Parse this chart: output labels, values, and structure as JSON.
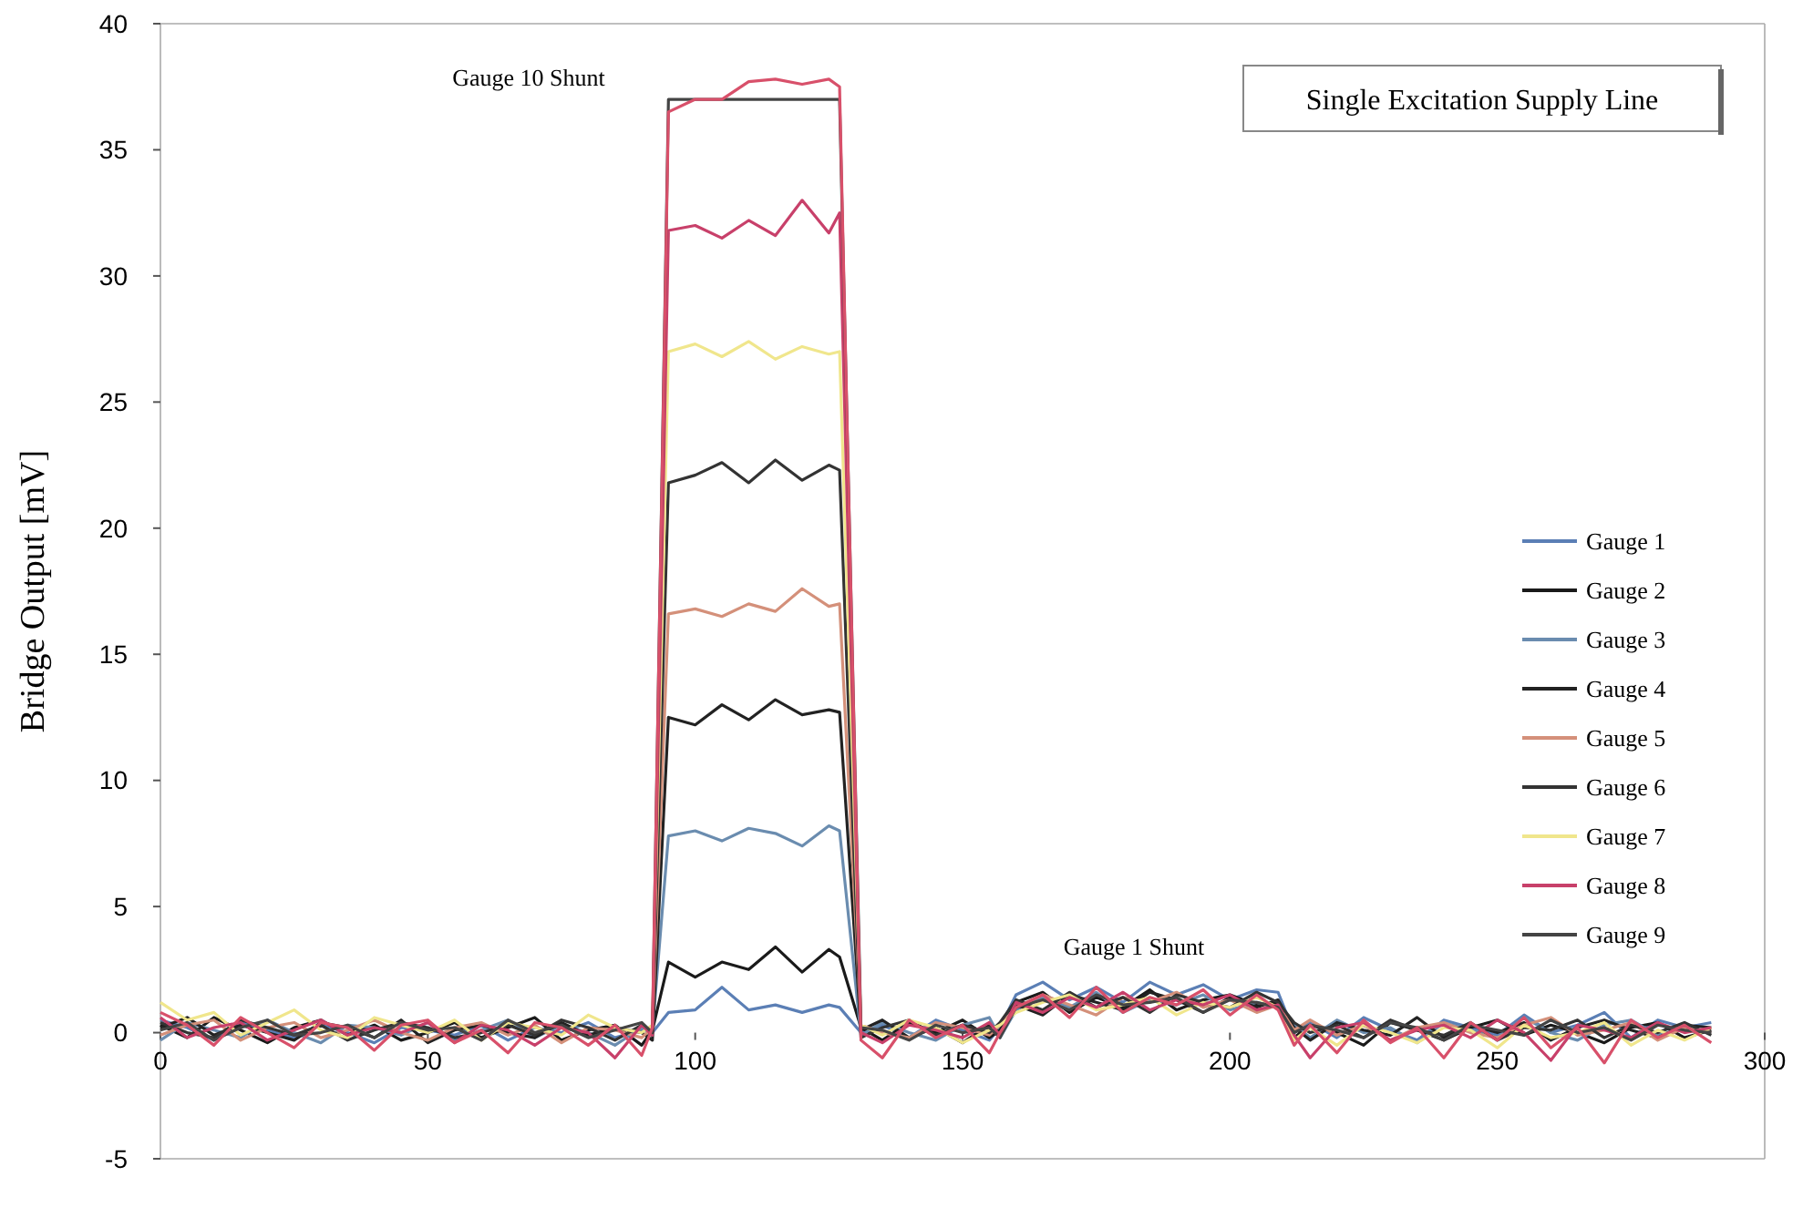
{
  "chart_data": {
    "type": "line",
    "title": "Single Excitation Supply Line",
    "ylabel": "Bridge Output [mV]",
    "annotations": [
      "Gauge 10 Shunt",
      "Gauge 1 Shunt"
    ],
    "x": [
      0,
      5,
      10,
      15,
      20,
      25,
      30,
      35,
      40,
      45,
      50,
      55,
      60,
      65,
      70,
      75,
      80,
      85,
      90,
      92,
      95,
      100,
      105,
      110,
      115,
      120,
      125,
      127,
      131,
      135,
      140,
      145,
      150,
      155,
      157,
      160,
      165,
      170,
      175,
      180,
      185,
      190,
      195,
      200,
      205,
      209,
      212,
      215,
      220,
      225,
      230,
      235,
      240,
      245,
      250,
      255,
      260,
      265,
      270,
      275,
      280,
      285,
      290
    ],
    "xlim": [
      0,
      300
    ],
    "xticks": [
      0,
      50,
      100,
      150,
      200,
      250,
      300
    ],
    "ylim": [
      -5,
      40
    ],
    "yticks": [
      -5,
      0,
      5,
      10,
      15,
      20,
      25,
      30,
      35,
      40
    ],
    "grid": false,
    "legend": "right",
    "marker": "none",
    "line_style": "solid",
    "series": [
      {
        "name": "Gauge 1",
        "color": "#5b7fb5",
        "values": [
          0.5,
          0.2,
          -0.3,
          0.4,
          0.1,
          -0.2,
          0.3,
          0,
          -0.4,
          0.2,
          0.1,
          -0.1,
          0.3,
          -0.3,
          0.2,
          0,
          0.4,
          -0.2,
          0.1,
          0,
          0.8,
          0.9,
          1.8,
          0.9,
          1.1,
          0.8,
          1.1,
          1,
          0,
          0.3,
          -0.2,
          0.5,
          0.1,
          -0.3,
          0.2,
          1.5,
          2,
          1.3,
          1.8,
          1.2,
          2,
          1.5,
          1.9,
          1.3,
          1.7,
          1.6,
          0,
          0.4,
          -0.2,
          0.6,
          0.1,
          -0.3,
          0.5,
          0.2,
          -0.1,
          0.7,
          0,
          0.3,
          0.8,
          -0.2,
          0.5,
          0.2,
          0.4
        ]
      },
      {
        "name": "Gauge 2",
        "color": "#1a1a1a",
        "values": [
          0.3,
          -0.2,
          0.6,
          0.1,
          -0.4,
          0.2,
          0.5,
          -0.1,
          0.3,
          -0.3,
          0,
          0.4,
          -0.2,
          0.2,
          0.6,
          -0.3,
          0.1,
          0.3,
          -0.5,
          0.1,
          2.8,
          2.2,
          2.8,
          2.5,
          3.4,
          2.4,
          3.3,
          3,
          0.2,
          -0.3,
          0.4,
          0,
          0.5,
          -0.2,
          0.1,
          1.2,
          1.6,
          0.8,
          1.4,
          1,
          1.7,
          0.9,
          1.3,
          1.5,
          1.1,
          1.2,
          -0.2,
          0.3,
          0,
          -0.5,
          0.4,
          0.1,
          -0.3,
          0.2,
          0.5,
          -0.1,
          0.3,
          0,
          -0.4,
          0.2,
          0.4,
          -0.2,
          0.1
        ]
      },
      {
        "name": "Gauge 3",
        "color": "#6a8caf",
        "values": [
          -0.3,
          0.4,
          0.1,
          -0.2,
          0.5,
          0,
          -0.4,
          0.3,
          0.2,
          -0.1,
          0.4,
          -0.3,
          0.1,
          0.5,
          -0.2,
          0.3,
          0,
          -0.5,
          0.2,
          0.1,
          7.8,
          8,
          7.6,
          8.1,
          7.9,
          7.4,
          8.2,
          8,
          -0.1,
          0.4,
          0,
          -0.3,
          0.3,
          0.6,
          -0.2,
          0.9,
          1.4,
          1,
          1.6,
          0.8,
          1.3,
          1.1,
          1.5,
          0.9,
          1.2,
          1,
          0.3,
          -0.2,
          0.5,
          0,
          0.2,
          -0.4,
          0.4,
          0.1,
          -0.2,
          0.6,
          0,
          -0.3,
          0.3,
          0.5,
          -0.1,
          0.2,
          0
        ]
      },
      {
        "name": "Gauge 4",
        "color": "#222222",
        "values": [
          0.2,
          0.6,
          -0.1,
          0.3,
          0,
          -0.3,
          0.4,
          0.2,
          -0.2,
          0.5,
          -0.4,
          0.1,
          0.3,
          0,
          -0.2,
          0.4,
          -0.1,
          0.2,
          0,
          -0.3,
          12.5,
          12.2,
          13,
          12.4,
          13.2,
          12.6,
          12.8,
          12.7,
          0.1,
          0.5,
          -0.2,
          0.2,
          -0.4,
          0.3,
          0,
          1.1,
          0.7,
          1.5,
          1.2,
          0.9,
          1.6,
          1.3,
          0.8,
          1.4,
          1,
          1.3,
          0.2,
          -0.3,
          0.4,
          0.1,
          -0.1,
          0.6,
          -0.2,
          0.3,
          0,
          0.4,
          -0.3,
          0.2,
          0.5,
          0.1,
          -0.2,
          0.3,
          0.2
        ]
      },
      {
        "name": "Gauge 5",
        "color": "#d4907a",
        "values": [
          -0.1,
          0.3,
          0.5,
          -0.3,
          0.2,
          0.4,
          -0.2,
          0.1,
          0.5,
          0,
          -0.3,
          0.2,
          0.4,
          -0.1,
          0.3,
          -0.4,
          0.2,
          0.1,
          -0.2,
          0.2,
          16.6,
          16.8,
          16.5,
          17,
          16.7,
          17.6,
          16.9,
          17,
          0.3,
          0,
          -0.2,
          0.4,
          0.2,
          -0.1,
          0.3,
          1,
          1.5,
          1.1,
          0.7,
          1.4,
          1.2,
          1.6,
          1,
          1.3,
          0.8,
          1.1,
          0.1,
          0.5,
          -0.1,
          0.3,
          -0.3,
          0.2,
          0.4,
          0,
          -0.2,
          0.3,
          0.6,
          -0.1,
          0.1,
          0.4,
          -0.3,
          0.2,
          0
        ]
      },
      {
        "name": "Gauge 6",
        "color": "#333333",
        "values": [
          0.4,
          0,
          -0.2,
          0.5,
          0.2,
          -0.1,
          0.3,
          -0.3,
          0.1,
          0.4,
          0.2,
          -0.2,
          0,
          0.3,
          -0.1,
          0.5,
          0.2,
          -0.3,
          0.3,
          0,
          21.8,
          22.1,
          22.6,
          21.8,
          22.7,
          21.9,
          22.5,
          22.3,
          -0.2,
          0.2,
          0.5,
          -0.1,
          0.3,
          0,
          0.4,
          1.3,
          0.9,
          1.6,
          1,
          1.4,
          0.8,
          1.5,
          1.2,
          1,
          1.6,
          1.2,
          0.4,
          0,
          0.3,
          -0.2,
          0.5,
          0.1,
          -0.1,
          0.4,
          -0.3,
          0.2,
          0.1,
          0.5,
          -0.2,
          0.3,
          0,
          0.4,
          -0.1
        ]
      },
      {
        "name": "Gauge 7",
        "color": "#f0e68c",
        "values": [
          1.2,
          0.5,
          0.8,
          -0.1,
          0.4,
          0.9,
          0.1,
          -0.2,
          0.6,
          0.3,
          0,
          0.5,
          -0.3,
          0.4,
          0.2,
          -0.1,
          0.7,
          0.2,
          0,
          0.3,
          27,
          27.3,
          26.8,
          27.4,
          26.7,
          27.2,
          26.9,
          27,
          0.3,
          -0.1,
          0.5,
          0.2,
          -0.4,
          0.1,
          0.3,
          0.8,
          1.2,
          1.5,
          0.9,
          1.1,
          1.4,
          0.7,
          1.2,
          1,
          1.4,
          1,
          -0.3,
          0.2,
          -0.5,
          0.3,
          0,
          -0.4,
          0.2,
          0.1,
          -0.6,
          0.3,
          -0.2,
          0,
          0.4,
          -0.5,
          0.1,
          -0.3,
          0.2
        ]
      },
      {
        "name": "Gauge 8",
        "color": "#c8406a",
        "values": [
          0.6,
          -0.2,
          0.2,
          0.4,
          -0.3,
          0.1,
          0.5,
          -0.1,
          0.2,
          0,
          0.4,
          -0.4,
          0.3,
          0.1,
          -0.5,
          0.2,
          0,
          -1,
          0.3,
          -0.1,
          31.8,
          32,
          31.5,
          32.2,
          31.6,
          33,
          31.7,
          32.5,
          0,
          -0.4,
          0.3,
          0.1,
          -0.2,
          0.4,
          -0.1,
          1.2,
          0.8,
          1.4,
          1,
          1.6,
          0.9,
          1.3,
          1.1,
          1.5,
          0.9,
          1.1,
          -0.1,
          -1,
          0.2,
          0.4,
          -0.3,
          0.1,
          0.3,
          -0.2,
          0.5,
          0,
          -1.1,
          0.3,
          0.1,
          -0.2,
          0.4,
          0,
          0.2
        ]
      },
      {
        "name": "Gauge 9",
        "color": "#444444",
        "values": [
          0.1,
          0.4,
          -0.3,
          0.2,
          0.5,
          -0.1,
          0,
          0.3,
          -0.2,
          0.4,
          0.1,
          0.2,
          -0.3,
          0.5,
          0,
          0.3,
          -0.2,
          0.1,
          0.4,
          0,
          37,
          37,
          37,
          37,
          37,
          37,
          37,
          37,
          0.2,
          0.1,
          -0.3,
          0.3,
          0,
          0.2,
          -0.2,
          1,
          1.3,
          0.9,
          1.5,
          1.1,
          1.2,
          1.4,
          0.8,
          1.3,
          1.2,
          1,
          0,
          0.3,
          0.1,
          -0.2,
          0.4,
          0.2,
          -0.3,
          0.3,
          0.1,
          -0.1,
          0.5,
          0,
          0.2,
          -0.3,
          0.3,
          0.1,
          0
        ]
      },
      {
        "color": "#d8506a",
        "values": [
          0.8,
          0.3,
          -0.5,
          0.6,
          0,
          -0.6,
          0.4,
          0.2,
          -0.7,
          0.3,
          0.5,
          -0.4,
          0.1,
          -0.8,
          0.4,
          0.2,
          -0.5,
          0.3,
          -0.9,
          0.2,
          36.5,
          37,
          37,
          37.7,
          37.8,
          37.6,
          37.8,
          37.5,
          -0.3,
          -1,
          0.5,
          -0.2,
          0.3,
          -0.8,
          0,
          1,
          1.5,
          0.6,
          1.8,
          0.8,
          1.4,
          1.1,
          1.7,
          0.7,
          1.5,
          0.9,
          -0.5,
          0.3,
          -0.8,
          0.5,
          -0.4,
          0.2,
          -1,
          0.4,
          -0.3,
          0.6,
          -0.6,
          0.2,
          -1.2,
          0.5,
          -0.2,
          0.3,
          -0.4
        ]
      }
    ]
  }
}
